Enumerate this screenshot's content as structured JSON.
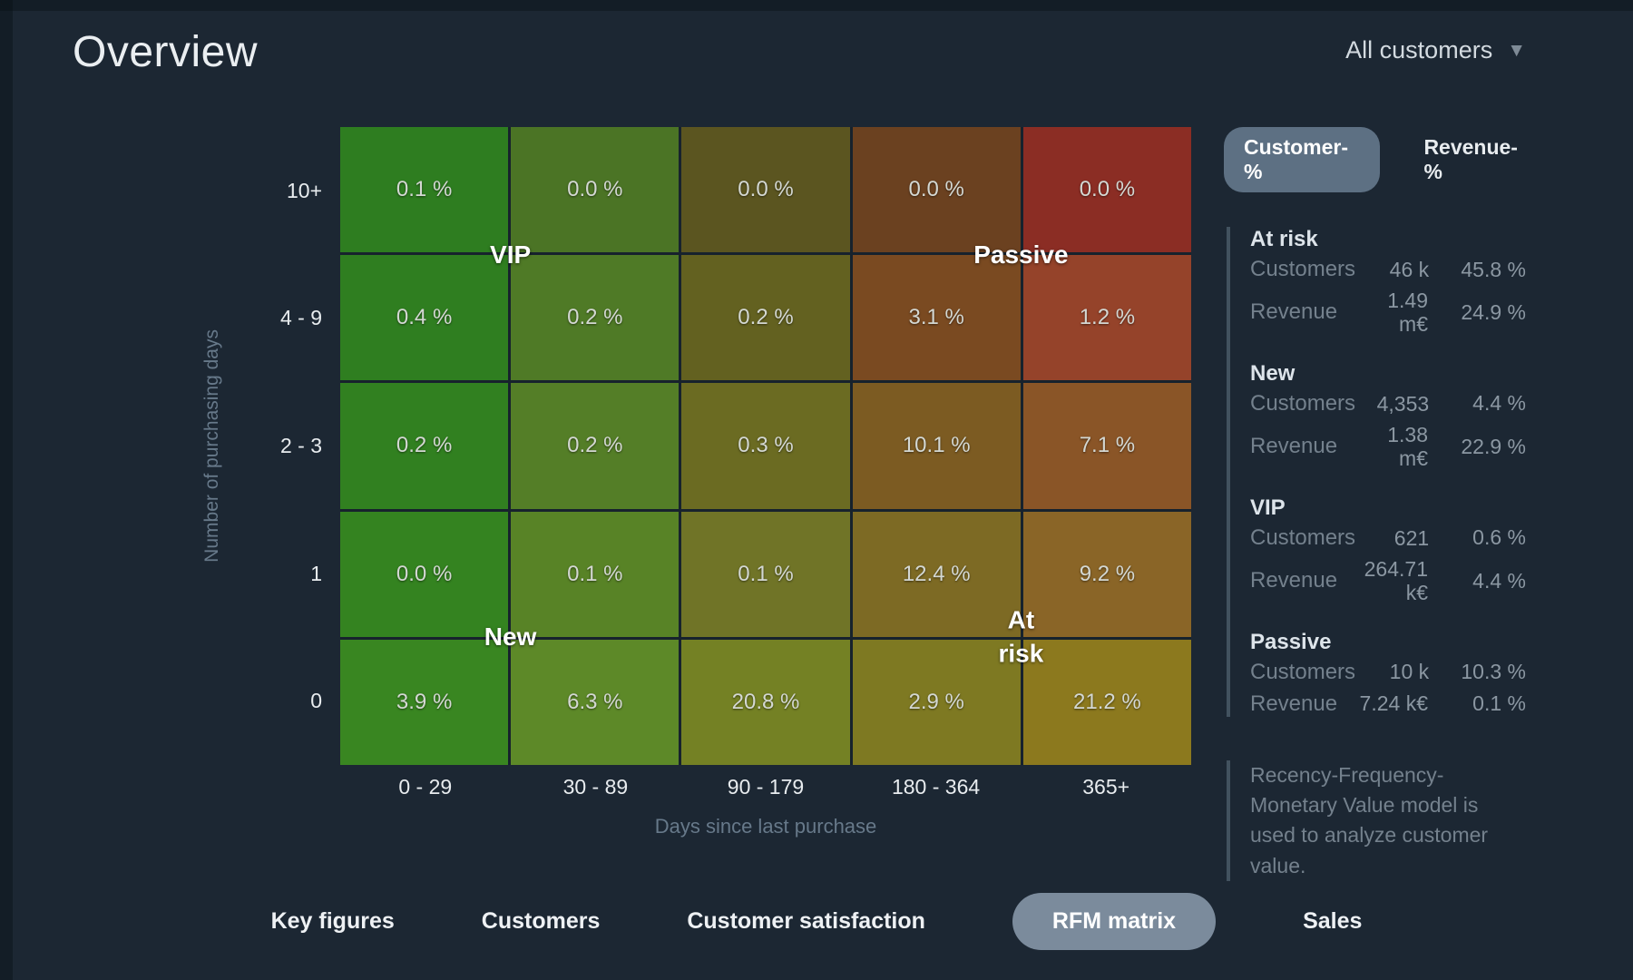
{
  "page": {
    "title": "Overview"
  },
  "filter": {
    "label": "All customers",
    "caret_icon": "▼"
  },
  "matrix": {
    "x_axis": {
      "title": "Days since last purchase",
      "ticks": [
        "0 - 29",
        "30 - 89",
        "90 - 179",
        "180 - 364",
        "365+"
      ]
    },
    "y_axis": {
      "title": "Number of purchasing days",
      "ticks": [
        "10+",
        "4 - 9",
        "2 - 3",
        "1",
        "0"
      ]
    },
    "overlays": {
      "vip": "VIP",
      "passive": "Passive",
      "new": "New",
      "at_risk": "At risk"
    },
    "rows": [
      {
        "tick": "10+",
        "cells": [
          {
            "value": "0.1 %",
            "color": "#2e7d20"
          },
          {
            "value": "0.0 %",
            "color": "#4b7425"
          },
          {
            "value": "0.0 %",
            "color": "#5b5520"
          },
          {
            "value": "0.0 %",
            "color": "#6b4120"
          },
          {
            "value": "0.0 %",
            "color": "#8b2d24"
          }
        ]
      },
      {
        "tick": "4 - 9",
        "cells": [
          {
            "value": "0.4 %",
            "color": "#2f7e20"
          },
          {
            "value": "0.2 %",
            "color": "#4f7a26"
          },
          {
            "value": "0.2 %",
            "color": "#636120"
          },
          {
            "value": "3.1 %",
            "color": "#7a4a21"
          },
          {
            "value": "1.2 %",
            "color": "#95432a"
          }
        ]
      },
      {
        "tick": "2 - 3",
        "cells": [
          {
            "value": "0.2 %",
            "color": "#318020"
          },
          {
            "value": "0.2 %",
            "color": "#547e27"
          },
          {
            "value": "0.3 %",
            "color": "#6b6b22"
          },
          {
            "value": "10.1 %",
            "color": "#7c5b22"
          },
          {
            "value": "7.1 %",
            "color": "#8a5527"
          }
        ]
      },
      {
        "tick": "1",
        "cells": [
          {
            "value": "0.0 %",
            "color": "#348320"
          },
          {
            "value": "0.1 %",
            "color": "#588326"
          },
          {
            "value": "0.1 %",
            "color": "#707427"
          },
          {
            "value": "12.4 %",
            "color": "#7d6a24"
          },
          {
            "value": "9.2 %",
            "color": "#8a6527"
          }
        ]
      },
      {
        "tick": "0",
        "cells": [
          {
            "value": "3.9 %",
            "color": "#398621"
          },
          {
            "value": "6.3 %",
            "color": "#5d8928"
          },
          {
            "value": "20.8 %",
            "color": "#748124"
          },
          {
            "value": "2.9 %",
            "color": "#7e7922"
          },
          {
            "value": "21.2 %",
            "color": "#8c791e"
          }
        ]
      }
    ]
  },
  "chart_data": {
    "type": "heatmap",
    "x_categories": [
      "0 - 29",
      "30 - 89",
      "90 - 179",
      "180 - 364",
      "365+"
    ],
    "y_categories": [
      "10+",
      "4 - 9",
      "2 - 3",
      "1",
      "0"
    ],
    "values_customer_pct": [
      [
        0.1,
        0.0,
        0.0,
        0.0,
        0.0
      ],
      [
        0.4,
        0.2,
        0.2,
        3.1,
        1.2
      ],
      [
        0.2,
        0.2,
        0.3,
        10.1,
        7.1
      ],
      [
        0.0,
        0.1,
        0.1,
        12.4,
        9.2
      ],
      [
        3.9,
        6.3,
        20.8,
        2.9,
        21.2
      ]
    ],
    "xlabel": "Days since last purchase",
    "ylabel": "Number of purchasing days",
    "annotations": [
      "VIP",
      "Passive",
      "New",
      "At risk"
    ],
    "color_scale": [
      "#2e7d20",
      "#748124",
      "#8b2d24"
    ]
  },
  "side_panel": {
    "tabs": [
      {
        "label": "Customer-%",
        "active": true
      },
      {
        "label": "Revenue-%",
        "active": false
      }
    ],
    "segments": [
      {
        "name": "At risk",
        "rows": [
          {
            "label": "Customers",
            "value": "46 k",
            "pct": "45.8 %"
          },
          {
            "label": "Revenue",
            "value": "1.49 m€",
            "pct": "24.9 %"
          }
        ]
      },
      {
        "name": "New",
        "rows": [
          {
            "label": "Customers",
            "value": "4,353",
            "pct": "4.4 %"
          },
          {
            "label": "Revenue",
            "value": "1.38 m€",
            "pct": "22.9 %"
          }
        ]
      },
      {
        "name": "VIP",
        "rows": [
          {
            "label": "Customers",
            "value": "621",
            "pct": "0.6 %"
          },
          {
            "label": "Revenue",
            "value": "264.71 k€",
            "pct": "4.4 %"
          }
        ]
      },
      {
        "name": "Passive",
        "rows": [
          {
            "label": "Customers",
            "value": "10 k",
            "pct": "10.3 %"
          },
          {
            "label": "Revenue",
            "value": "7.24 k€",
            "pct": "0.1 %"
          }
        ]
      }
    ],
    "note": "Recency-Frequency-Monetary Value model is used to analyze customer value."
  },
  "bottom_tabs": [
    {
      "label": "Key figures",
      "active": false
    },
    {
      "label": "Customers",
      "active": false
    },
    {
      "label": "Customer satisfaction",
      "active": false
    },
    {
      "label": "RFM matrix",
      "active": true
    },
    {
      "label": "Sales",
      "active": false
    }
  ]
}
